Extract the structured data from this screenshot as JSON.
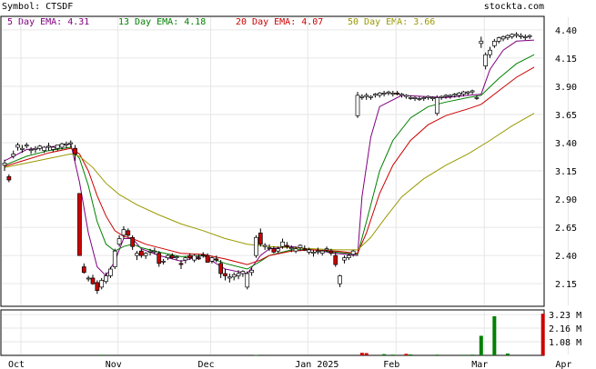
{
  "header": {
    "symbol_label": "Symbol: CTSDF",
    "site": "stockta.com"
  },
  "legend": [
    {
      "text": "5 Day EMA: 4.31",
      "color": "#800080"
    },
    {
      "text": "13 Day EMA: 4.18",
      "color": "#008000"
    },
    {
      "text": "20 Day EMA: 4.07",
      "color": "#cc0000"
    },
    {
      "text": "50 Day EMA: 3.66",
      "color": "#999900"
    }
  ],
  "colors": {
    "up": "#ffffff",
    "down": "#cc0000",
    "grid": "#e6e6e6",
    "border": "#000000",
    "vol_up": "#008000",
    "vol_down": "#cc0000"
  },
  "chart_data": {
    "type": "candlestick",
    "price_axis": {
      "ticks": [
        "4.40",
        "4.15",
        "3.90",
        "3.65",
        "3.40",
        "3.15",
        "2.90",
        "2.65",
        "2.40",
        "2.15"
      ],
      "min": 1.95,
      "max": 4.52
    },
    "volume_axis": {
      "ticks": [
        "3.23 M",
        "2.16 M",
        "1.08 M"
      ],
      "unit": "M",
      "max": 3.6
    },
    "x_axis": {
      "labels": [
        "Oct",
        "Nov",
        "Dec",
        "Jan 2025",
        "Feb",
        "Mar",
        "Apr"
      ],
      "label_positions": [
        0,
        22,
        43,
        65,
        85,
        105,
        124
      ]
    },
    "candles": [
      [
        3.2,
        3.25,
        3.15,
        3.22
      ],
      [
        3.1,
        3.12,
        3.05,
        3.07
      ],
      [
        3.28,
        3.33,
        3.26,
        3.3
      ],
      [
        3.36,
        3.4,
        3.33,
        3.38
      ],
      [
        3.34,
        3.38,
        3.31,
        3.35
      ],
      [
        3.37,
        3.4,
        3.35,
        3.38
      ],
      [
        3.33,
        3.36,
        3.3,
        3.34
      ],
      [
        3.34,
        3.37,
        3.31,
        3.35
      ],
      [
        3.35,
        3.38,
        3.33,
        3.37
      ],
      [
        3.33,
        3.37,
        3.31,
        3.36
      ],
      [
        3.36,
        3.4,
        3.33,
        3.37
      ],
      [
        3.34,
        3.37,
        3.32,
        3.36
      ],
      [
        3.35,
        3.38,
        3.33,
        3.38
      ],
      [
        3.36,
        3.4,
        3.34,
        3.39
      ],
      [
        3.38,
        3.41,
        3.35,
        3.39
      ],
      [
        3.39,
        3.42,
        3.36,
        3.4
      ],
      [
        3.35,
        3.38,
        3.24,
        3.3
      ],
      [
        2.95,
        2.95,
        2.4,
        2.4
      ],
      [
        2.3,
        2.33,
        2.24,
        2.25
      ],
      [
        2.2,
        2.22,
        2.17,
        2.2
      ],
      [
        2.2,
        2.23,
        2.14,
        2.15
      ],
      [
        2.16,
        2.18,
        2.06,
        2.09
      ],
      [
        2.12,
        2.2,
        2.1,
        2.18
      ],
      [
        2.17,
        2.25,
        2.15,
        2.22
      ],
      [
        2.22,
        2.3,
        2.2,
        2.28
      ],
      [
        2.3,
        2.46,
        2.28,
        2.44
      ],
      [
        2.5,
        2.58,
        2.48,
        2.55
      ],
      [
        2.58,
        2.66,
        2.55,
        2.63
      ],
      [
        2.62,
        2.64,
        2.56,
        2.58
      ],
      [
        2.56,
        2.58,
        2.45,
        2.48
      ],
      [
        2.4,
        2.44,
        2.36,
        2.42
      ],
      [
        2.44,
        2.46,
        2.38,
        2.4
      ],
      [
        2.4,
        2.43,
        2.37,
        2.42
      ],
      [
        2.43,
        2.46,
        2.4,
        2.44
      ],
      [
        2.44,
        2.47,
        2.41,
        2.44
      ],
      [
        2.42,
        2.44,
        2.3,
        2.33
      ],
      [
        2.35,
        2.37,
        2.32,
        2.35
      ],
      [
        2.38,
        2.41,
        2.36,
        2.4
      ],
      [
        2.4,
        2.42,
        2.37,
        2.38
      ],
      [
        2.38,
        2.4,
        2.36,
        2.39
      ],
      [
        2.33,
        2.36,
        2.28,
        2.32
      ],
      [
        2.36,
        2.39,
        2.33,
        2.38
      ],
      [
        2.4,
        2.42,
        2.36,
        2.38
      ],
      [
        2.36,
        2.41,
        2.34,
        2.4
      ],
      [
        2.38,
        2.41,
        2.36,
        2.37
      ],
      [
        2.41,
        2.43,
        2.38,
        2.4
      ],
      [
        2.4,
        2.42,
        2.34,
        2.34
      ],
      [
        2.35,
        2.39,
        2.33,
        2.38
      ],
      [
        2.37,
        2.4,
        2.34,
        2.36
      ],
      [
        2.33,
        2.36,
        2.2,
        2.24
      ],
      [
        2.24,
        2.28,
        2.18,
        2.22
      ],
      [
        2.2,
        2.24,
        2.16,
        2.21
      ],
      [
        2.21,
        2.25,
        2.18,
        2.23
      ],
      [
        2.22,
        2.27,
        2.19,
        2.24
      ],
      [
        2.24,
        2.27,
        2.21,
        2.26
      ],
      [
        2.12,
        2.26,
        2.1,
        2.24
      ],
      [
        2.25,
        2.29,
        2.22,
        2.27
      ],
      [
        2.4,
        2.58,
        2.38,
        2.56
      ],
      [
        2.6,
        2.64,
        2.48,
        2.5
      ],
      [
        2.48,
        2.51,
        2.45,
        2.49
      ],
      [
        2.47,
        2.5,
        2.44,
        2.47
      ],
      [
        2.46,
        2.48,
        2.42,
        2.43
      ],
      [
        2.44,
        2.48,
        2.42,
        2.46
      ],
      [
        2.48,
        2.55,
        2.46,
        2.52
      ],
      [
        2.49,
        2.52,
        2.46,
        2.48
      ],
      [
        2.46,
        2.49,
        2.43,
        2.47
      ],
      [
        2.44,
        2.48,
        2.42,
        2.46
      ],
      [
        2.47,
        2.5,
        2.44,
        2.49
      ],
      [
        2.46,
        2.49,
        2.44,
        2.45
      ],
      [
        2.43,
        2.47,
        2.41,
        2.45
      ],
      [
        2.42,
        2.45,
        2.39,
        2.43
      ],
      [
        2.44,
        2.47,
        2.41,
        2.44
      ],
      [
        2.42,
        2.45,
        2.4,
        2.44
      ],
      [
        2.45,
        2.48,
        2.43,
        2.46
      ],
      [
        2.44,
        2.46,
        2.4,
        2.42
      ],
      [
        2.4,
        2.43,
        2.3,
        2.32
      ],
      [
        2.15,
        2.23,
        2.12,
        2.22
      ],
      [
        2.36,
        2.4,
        2.33,
        2.38
      ],
      [
        2.38,
        2.42,
        2.36,
        2.4
      ],
      [
        2.41,
        2.45,
        2.39,
        2.44
      ],
      [
        3.64,
        3.85,
        3.62,
        3.82
      ],
      [
        3.8,
        3.83,
        3.78,
        3.81
      ],
      [
        3.81,
        3.84,
        3.78,
        3.82
      ],
      [
        3.8,
        3.82,
        3.78,
        3.81
      ],
      [
        3.82,
        3.84,
        3.8,
        3.83
      ],
      [
        3.82,
        3.85,
        3.8,
        3.84
      ],
      [
        3.83,
        3.86,
        3.81,
        3.84
      ],
      [
        3.84,
        3.86,
        3.82,
        3.85
      ],
      [
        3.83,
        3.86,
        3.81,
        3.84
      ],
      [
        3.84,
        3.86,
        3.82,
        3.83
      ],
      [
        3.82,
        3.84,
        3.8,
        3.83
      ],
      [
        3.81,
        3.83,
        3.79,
        3.82
      ],
      [
        3.8,
        3.82,
        3.78,
        3.8
      ],
      [
        3.79,
        3.81,
        3.77,
        3.8
      ],
      [
        3.79,
        3.81,
        3.77,
        3.79
      ],
      [
        3.79,
        3.81,
        3.77,
        3.8
      ],
      [
        3.8,
        3.82,
        3.78,
        3.81
      ],
      [
        3.79,
        3.81,
        3.77,
        3.8
      ],
      [
        3.66,
        3.82,
        3.64,
        3.8
      ],
      [
        3.8,
        3.82,
        3.78,
        3.81
      ],
      [
        3.81,
        3.83,
        3.79,
        3.82
      ],
      [
        3.81,
        3.83,
        3.79,
        3.82
      ],
      [
        3.82,
        3.84,
        3.8,
        3.83
      ],
      [
        3.82,
        3.85,
        3.8,
        3.84
      ],
      [
        3.83,
        3.86,
        3.81,
        3.85
      ],
      [
        3.84,
        3.86,
        3.82,
        3.85
      ],
      [
        3.85,
        3.87,
        3.83,
        3.86
      ],
      [
        3.8,
        3.82,
        3.78,
        3.8
      ],
      [
        4.28,
        4.34,
        4.24,
        4.3
      ],
      [
        4.08,
        4.2,
        4.05,
        4.18
      ],
      [
        4.18,
        4.25,
        4.15,
        4.22
      ],
      [
        4.26,
        4.32,
        4.24,
        4.3
      ],
      [
        4.3,
        4.34,
        4.28,
        4.33
      ],
      [
        4.32,
        4.35,
        4.3,
        4.34
      ],
      [
        4.33,
        4.36,
        4.31,
        4.35
      ],
      [
        4.34,
        4.37,
        4.32,
        4.36
      ],
      [
        4.35,
        4.38,
        4.33,
        4.36
      ],
      [
        4.34,
        4.37,
        4.32,
        4.35
      ],
      [
        4.33,
        4.36,
        4.31,
        4.34
      ],
      [
        4.34,
        4.36,
        4.32,
        4.35
      ]
    ],
    "ema": [
      {
        "name": "5 Day EMA",
        "color": "#800080",
        "points": [
          [
            0,
            3.24
          ],
          [
            5,
            3.34
          ],
          [
            10,
            3.36
          ],
          [
            15,
            3.39
          ],
          [
            17,
            3.05
          ],
          [
            19,
            2.6
          ],
          [
            21,
            2.3
          ],
          [
            23,
            2.22
          ],
          [
            25,
            2.35
          ],
          [
            27,
            2.55
          ],
          [
            29,
            2.55
          ],
          [
            31,
            2.46
          ],
          [
            35,
            2.4
          ],
          [
            40,
            2.35
          ],
          [
            45,
            2.4
          ],
          [
            50,
            2.28
          ],
          [
            55,
            2.24
          ],
          [
            58,
            2.4
          ],
          [
            60,
            2.46
          ],
          [
            65,
            2.48
          ],
          [
            70,
            2.45
          ],
          [
            75,
            2.42
          ],
          [
            80,
            2.4
          ],
          [
            81,
            2.92
          ],
          [
            83,
            3.45
          ],
          [
            85,
            3.72
          ],
          [
            90,
            3.82
          ],
          [
            95,
            3.81
          ],
          [
            100,
            3.8
          ],
          [
            105,
            3.82
          ],
          [
            108,
            3.83
          ],
          [
            110,
            4.05
          ],
          [
            113,
            4.22
          ],
          [
            116,
            4.3
          ],
          [
            120,
            4.31
          ]
        ]
      },
      {
        "name": "13 Day EMA",
        "color": "#008000",
        "points": [
          [
            0,
            3.2
          ],
          [
            5,
            3.28
          ],
          [
            10,
            3.33
          ],
          [
            15,
            3.36
          ],
          [
            17,
            3.26
          ],
          [
            19,
            3.02
          ],
          [
            21,
            2.7
          ],
          [
            23,
            2.5
          ],
          [
            25,
            2.44
          ],
          [
            27,
            2.48
          ],
          [
            29,
            2.5
          ],
          [
            31,
            2.47
          ],
          [
            35,
            2.43
          ],
          [
            40,
            2.39
          ],
          [
            45,
            2.4
          ],
          [
            50,
            2.33
          ],
          [
            55,
            2.28
          ],
          [
            58,
            2.35
          ],
          [
            60,
            2.4
          ],
          [
            65,
            2.45
          ],
          [
            70,
            2.45
          ],
          [
            75,
            2.43
          ],
          [
            80,
            2.41
          ],
          [
            82,
            2.7
          ],
          [
            85,
            3.15
          ],
          [
            88,
            3.42
          ],
          [
            92,
            3.62
          ],
          [
            96,
            3.72
          ],
          [
            100,
            3.76
          ],
          [
            105,
            3.8
          ],
          [
            108,
            3.82
          ],
          [
            112,
            3.97
          ],
          [
            116,
            4.1
          ],
          [
            120,
            4.18
          ]
        ]
      },
      {
        "name": "20 Day EMA",
        "color": "#cc0000",
        "points": [
          [
            0,
            3.19
          ],
          [
            5,
            3.25
          ],
          [
            10,
            3.31
          ],
          [
            15,
            3.35
          ],
          [
            17,
            3.3
          ],
          [
            19,
            3.15
          ],
          [
            21,
            2.93
          ],
          [
            23,
            2.75
          ],
          [
            25,
            2.62
          ],
          [
            27,
            2.57
          ],
          [
            29,
            2.55
          ],
          [
            32,
            2.5
          ],
          [
            36,
            2.46
          ],
          [
            40,
            2.42
          ],
          [
            45,
            2.41
          ],
          [
            50,
            2.37
          ],
          [
            55,
            2.32
          ],
          [
            58,
            2.36
          ],
          [
            60,
            2.4
          ],
          [
            65,
            2.44
          ],
          [
            70,
            2.45
          ],
          [
            75,
            2.44
          ],
          [
            80,
            2.42
          ],
          [
            82,
            2.6
          ],
          [
            85,
            2.95
          ],
          [
            88,
            3.2
          ],
          [
            92,
            3.42
          ],
          [
            96,
            3.56
          ],
          [
            100,
            3.64
          ],
          [
            105,
            3.7
          ],
          [
            108,
            3.74
          ],
          [
            112,
            3.86
          ],
          [
            116,
            3.98
          ],
          [
            120,
            4.07
          ]
        ]
      },
      {
        "name": "50 Day EMA",
        "color": "#999900",
        "points": [
          [
            0,
            3.18
          ],
          [
            5,
            3.22
          ],
          [
            10,
            3.26
          ],
          [
            15,
            3.3
          ],
          [
            17,
            3.28
          ],
          [
            20,
            3.18
          ],
          [
            23,
            3.04
          ],
          [
            26,
            2.94
          ],
          [
            30,
            2.85
          ],
          [
            35,
            2.76
          ],
          [
            40,
            2.68
          ],
          [
            45,
            2.62
          ],
          [
            50,
            2.55
          ],
          [
            55,
            2.5
          ],
          [
            60,
            2.48
          ],
          [
            65,
            2.47
          ],
          [
            70,
            2.46
          ],
          [
            75,
            2.45
          ],
          [
            80,
            2.45
          ],
          [
            83,
            2.56
          ],
          [
            86,
            2.72
          ],
          [
            90,
            2.92
          ],
          [
            95,
            3.08
          ],
          [
            100,
            3.2
          ],
          [
            105,
            3.3
          ],
          [
            110,
            3.42
          ],
          [
            115,
            3.55
          ],
          [
            120,
            3.66
          ]
        ]
      }
    ],
    "volume": [
      {
        "i": 22,
        "v": 0.05,
        "dir": "up"
      },
      {
        "i": 57,
        "v": 0.04,
        "dir": "up"
      },
      {
        "i": 81,
        "v": 0.2,
        "dir": "down"
      },
      {
        "i": 82,
        "v": 0.18,
        "dir": "down"
      },
      {
        "i": 86,
        "v": 0.1,
        "dir": "up"
      },
      {
        "i": 88,
        "v": 0.06,
        "dir": "up"
      },
      {
        "i": 91,
        "v": 0.12,
        "dir": "down"
      },
      {
        "i": 92,
        "v": 0.08,
        "dir": "up"
      },
      {
        "i": 98,
        "v": 0.06,
        "dir": "up"
      },
      {
        "i": 104,
        "v": 0.05,
        "dir": "up"
      },
      {
        "i": 106,
        "v": 0.06,
        "dir": "up"
      },
      {
        "i": 108,
        "v": 1.55,
        "dir": "up"
      },
      {
        "i": 111,
        "v": 3.1,
        "dir": "up"
      },
      {
        "i": 114,
        "v": 0.15,
        "dir": "up"
      },
      {
        "i": 122,
        "v": 3.3,
        "dir": "down"
      }
    ]
  }
}
